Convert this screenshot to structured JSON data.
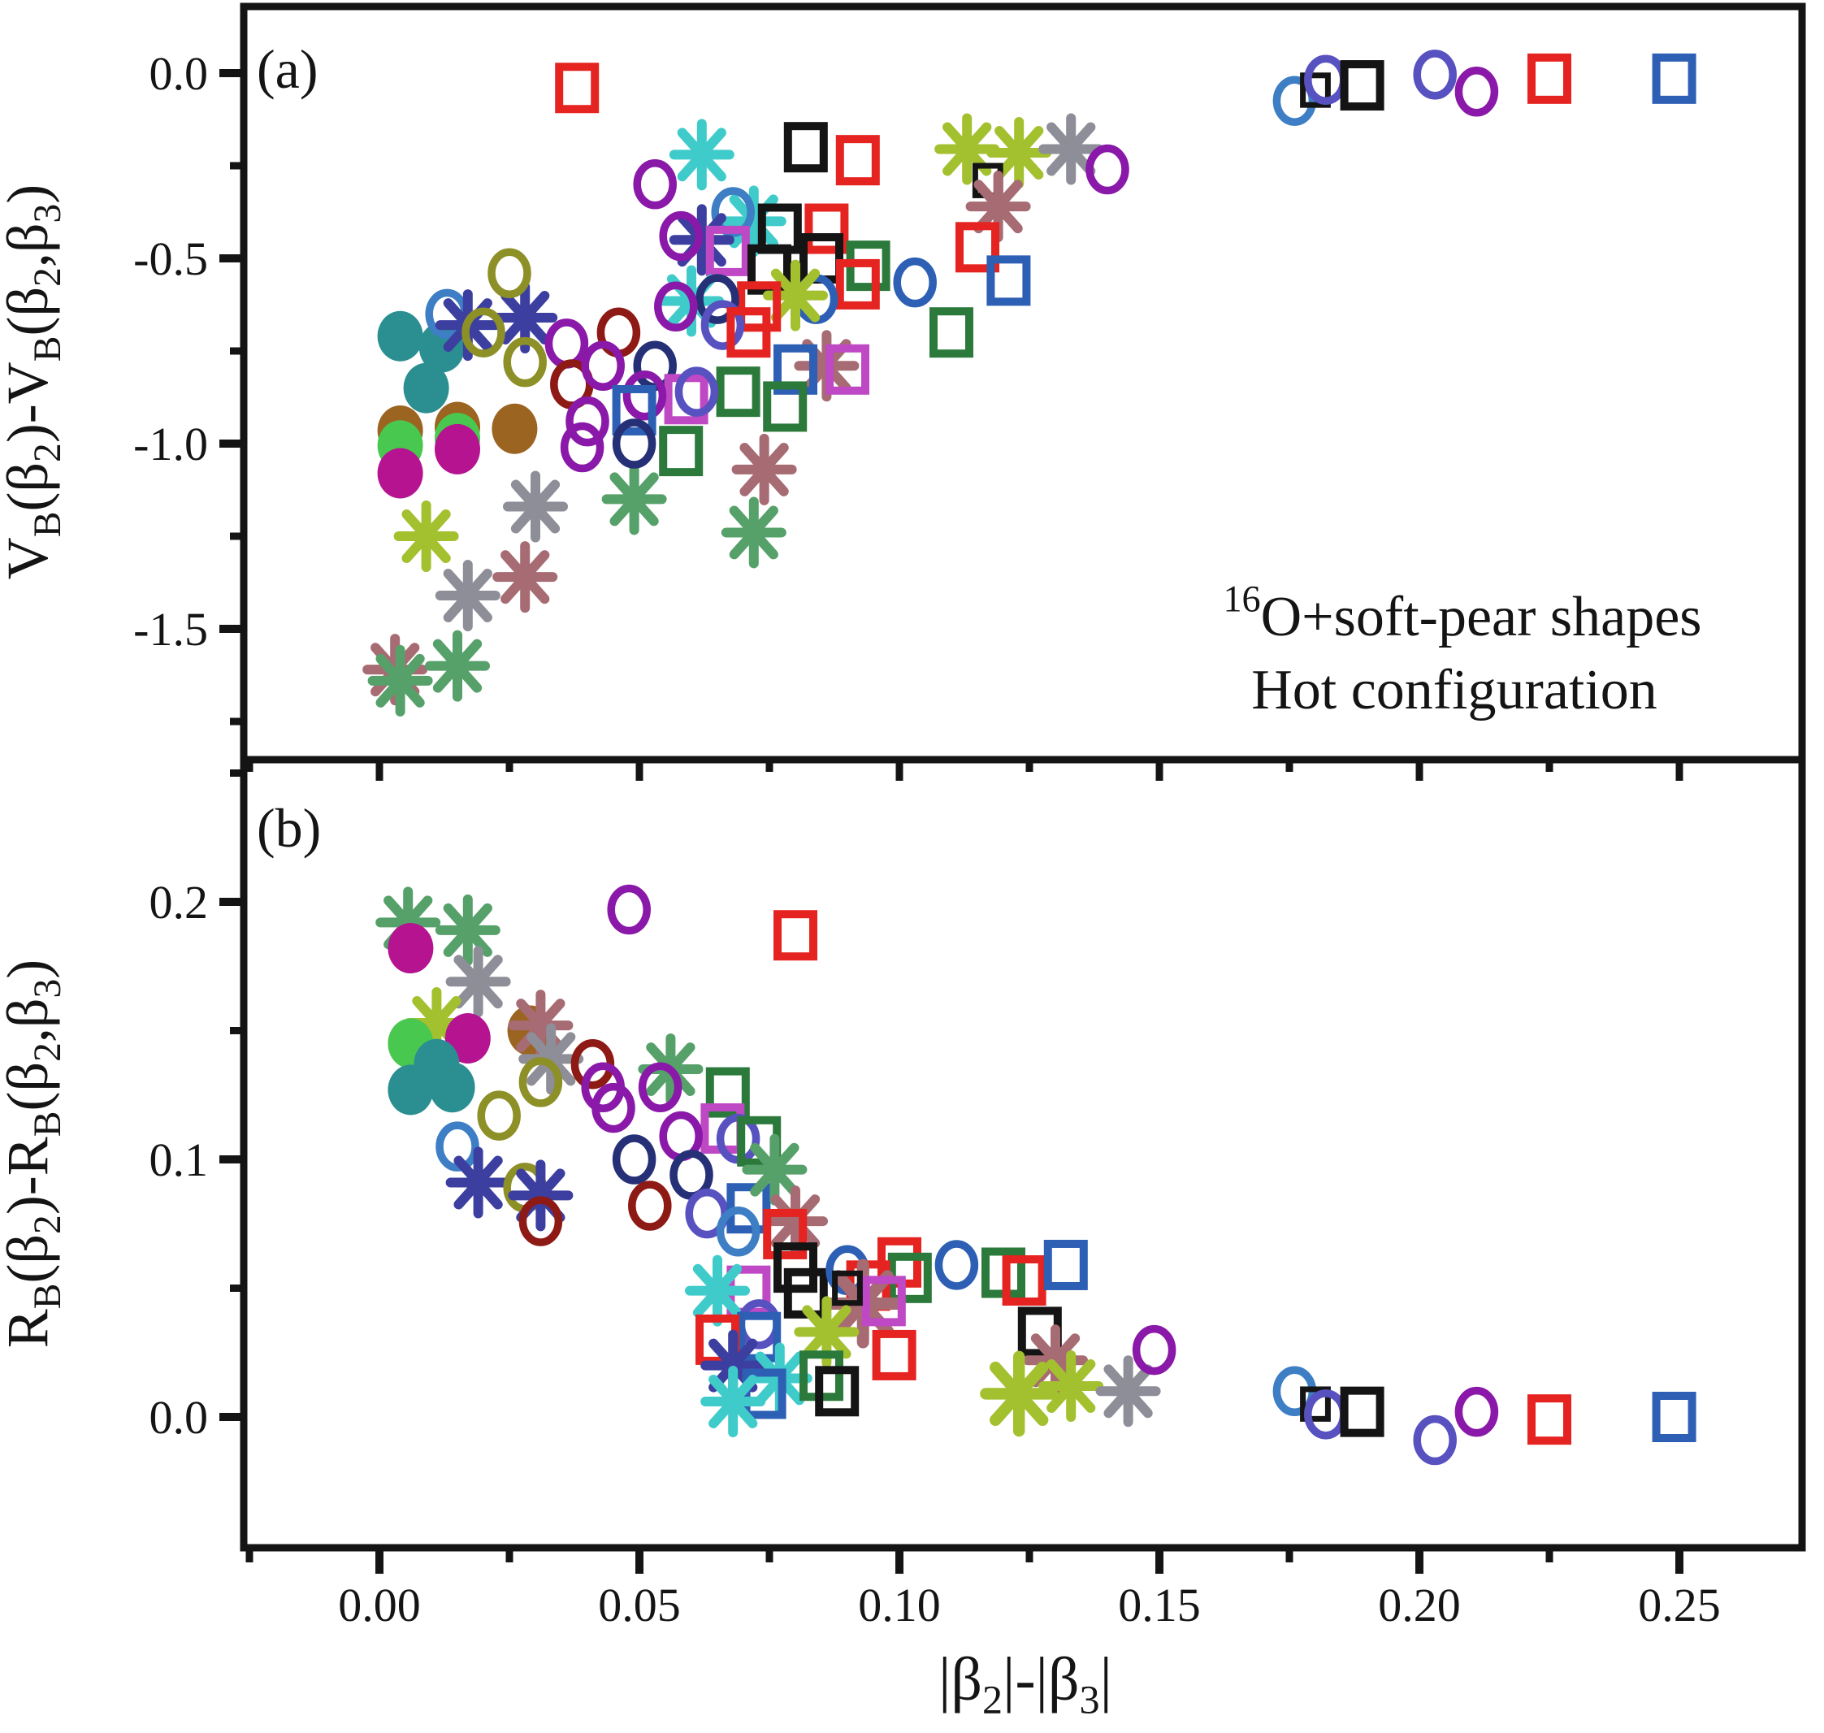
{
  "chart_data": {
    "type": "scatter",
    "title": "",
    "panels": [
      {
        "id": "a",
        "letter": "(a)",
        "ylabel": "V_{B}(β_{2})-V_{B}(β_{2},β_{3})",
        "xlabel": "",
        "ylim": [
          -1.85,
          0.18
        ],
        "yticks": [
          {
            "v": 0.0,
            "label": "0.0"
          },
          {
            "v": -0.5,
            "label": "-0.5"
          },
          {
            "v": -1.0,
            "label": "-1.0"
          },
          {
            "v": -1.5,
            "label": "-1.5"
          }
        ],
        "yminor": [
          -0.25,
          -0.75,
          -1.25,
          -1.75
        ],
        "grid": false,
        "annotation_lines": [
          "^{16}O+soft-pear shapes",
          "Hot configuration"
        ],
        "points": [
          [
            0.004,
            -0.71,
            "fc",
            "teal"
          ],
          [
            0.012,
            -0.74,
            "fc",
            "teal"
          ],
          [
            0.009,
            -0.85,
            "fc",
            "teal"
          ],
          [
            0.013,
            -0.65,
            "oc",
            "steelblue"
          ],
          [
            0.017,
            -0.68,
            "st",
            "navy"
          ],
          [
            0.028,
            -0.66,
            "st",
            "navy"
          ],
          [
            0.02,
            -0.7,
            "oc",
            "olive"
          ],
          [
            0.025,
            -0.54,
            "oc",
            "olive"
          ],
          [
            0.028,
            -0.78,
            "oc",
            "olive"
          ],
          [
            0.036,
            -0.73,
            "oc",
            "purple"
          ],
          [
            0.037,
            -0.84,
            "oc",
            "darkred"
          ],
          [
            0.004,
            -0.965,
            "fc",
            "brown"
          ],
          [
            0.004,
            -1.005,
            "fc",
            "green"
          ],
          [
            0.004,
            -1.08,
            "fc",
            "magenta"
          ],
          [
            0.015,
            -0.955,
            "fc",
            "brown"
          ],
          [
            0.015,
            -0.985,
            "fc",
            "green"
          ],
          [
            0.015,
            -1.015,
            "fc",
            "magenta"
          ],
          [
            0.026,
            -0.96,
            "fc",
            "brown"
          ],
          [
            0.03,
            -1.17,
            "st",
            "gray"
          ],
          [
            0.009,
            -1.25,
            "st",
            "yellowgreen"
          ],
          [
            0.017,
            -1.41,
            "st",
            "gray"
          ],
          [
            0.028,
            -1.36,
            "st",
            "rose"
          ],
          [
            0.003,
            -1.61,
            "st",
            "rose"
          ],
          [
            0.004,
            -1.64,
            "st",
            "seagreen"
          ],
          [
            0.015,
            -1.6,
            "st",
            "seagreen"
          ],
          [
            0.049,
            -1.15,
            "st",
            "seagreen"
          ],
          [
            0.072,
            -1.24,
            "st",
            "seagreen"
          ],
          [
            0.074,
            -1.07,
            "st",
            "rose"
          ],
          [
            0.038,
            -0.04,
            "sq",
            "red"
          ],
          [
            0.062,
            -0.22,
            "st",
            "cyan"
          ],
          [
            0.082,
            -0.2,
            "sq",
            "black"
          ],
          [
            0.092,
            -0.235,
            "sq",
            "red"
          ],
          [
            0.113,
            -0.205,
            "st",
            "yellowgreen"
          ],
          [
            0.123,
            -0.215,
            "st",
            "yellowgreen"
          ],
          [
            0.133,
            -0.205,
            "st",
            "gray"
          ],
          [
            0.117,
            -0.29,
            "sq",
            "black",
            0.7
          ],
          [
            0.119,
            -0.36,
            "st",
            "rose"
          ],
          [
            0.14,
            -0.26,
            "oc",
            "purple"
          ],
          [
            0.053,
            -0.3,
            "oc",
            "purple"
          ],
          [
            0.072,
            -0.4,
            "st",
            "cyan"
          ],
          [
            0.068,
            -0.375,
            "oc",
            "steelblue"
          ],
          [
            0.062,
            -0.45,
            "st",
            "navy"
          ],
          [
            0.058,
            -0.44,
            "oc",
            "purple"
          ],
          [
            0.067,
            -0.48,
            "sq",
            "orchid"
          ],
          [
            0.077,
            -0.42,
            "sq",
            "black"
          ],
          [
            0.086,
            -0.42,
            "sq",
            "red"
          ],
          [
            0.085,
            -0.5,
            "sq",
            "black"
          ],
          [
            0.075,
            -0.53,
            "sq",
            "black"
          ],
          [
            0.094,
            -0.52,
            "sq",
            "darkgreen"
          ],
          [
            0.092,
            -0.57,
            "sq",
            "red"
          ],
          [
            0.115,
            -0.47,
            "sq",
            "red"
          ],
          [
            0.121,
            -0.56,
            "sq",
            "blue"
          ],
          [
            0.103,
            -0.565,
            "oc",
            "blue"
          ],
          [
            0.084,
            -0.61,
            "oc",
            "blue"
          ],
          [
            0.08,
            -0.6,
            "st",
            "yellowgreen"
          ],
          [
            0.073,
            -0.63,
            "sq",
            "red"
          ],
          [
            0.06,
            -0.615,
            "st",
            "cyan"
          ],
          [
            0.065,
            -0.61,
            "oc",
            "navyblue"
          ],
          [
            0.057,
            -0.63,
            "oc",
            "purple"
          ],
          [
            0.066,
            -0.68,
            "oc",
            "violet"
          ],
          [
            0.046,
            -0.7,
            "oc",
            "darkred"
          ],
          [
            0.071,
            -0.7,
            "sq",
            "red"
          ],
          [
            0.043,
            -0.79,
            "oc",
            "purple"
          ],
          [
            0.053,
            -0.79,
            "oc",
            "navyblue"
          ],
          [
            0.11,
            -0.7,
            "sq",
            "darkgreen"
          ],
          [
            0.086,
            -0.79,
            "st",
            "rose"
          ],
          [
            0.09,
            -0.8,
            "sq",
            "orchid"
          ],
          [
            0.08,
            -0.8,
            "sq",
            "blue"
          ],
          [
            0.059,
            -0.88,
            "sq",
            "orchid"
          ],
          [
            0.051,
            -0.87,
            "oc",
            "purple"
          ],
          [
            0.049,
            -0.91,
            "sq",
            "blue"
          ],
          [
            0.069,
            -0.86,
            "sq",
            "darkgreen"
          ],
          [
            0.078,
            -0.9,
            "sq",
            "darkgreen"
          ],
          [
            0.061,
            -0.86,
            "oc",
            "violet"
          ],
          [
            0.04,
            -0.94,
            "oc",
            "purple"
          ],
          [
            0.039,
            -1.01,
            "oc",
            "purple"
          ],
          [
            0.049,
            -1.0,
            "oc",
            "navyblue"
          ],
          [
            0.058,
            -1.02,
            "sq",
            "darkgreen"
          ],
          [
            0.176,
            -0.075,
            "oc",
            "steelblue"
          ],
          [
            0.18,
            -0.046,
            "sq",
            "black",
            0.7
          ],
          [
            0.182,
            -0.018,
            "oc",
            "violet"
          ],
          [
            0.189,
            -0.033,
            "sq",
            "black"
          ],
          [
            0.203,
            -0.004,
            "oc",
            "violet"
          ],
          [
            0.211,
            -0.05,
            "oc",
            "purple"
          ],
          [
            0.225,
            -0.015,
            "sq",
            "red"
          ],
          [
            0.249,
            -0.015,
            "sq",
            "blue"
          ]
        ]
      },
      {
        "id": "b",
        "letter": "(b)",
        "ylabel": "R_{B}(β_{2})-R_{B}(β_{2},β_{3})",
        "ylim": [
          -0.051,
          0.255
        ],
        "yticks": [
          {
            "v": 0.2,
            "label": "0.2"
          },
          {
            "v": 0.1,
            "label": "0.1"
          },
          {
            "v": 0.0,
            "label": "0.0"
          }
        ],
        "yminor": [
          0.25,
          0.15,
          0.05
        ],
        "grid": false,
        "annotation_lines": [],
        "points": [
          [
            0.0055,
            0.192,
            "st",
            "seagreen"
          ],
          [
            0.006,
            0.182,
            "fc",
            "magenta"
          ],
          [
            0.017,
            0.189,
            "st",
            "seagreen"
          ],
          [
            0.048,
            0.197,
            "oc",
            "purple"
          ],
          [
            0.08,
            0.187,
            "sq",
            "red"
          ],
          [
            0.019,
            0.169,
            "st",
            "gray"
          ],
          [
            0.011,
            0.153,
            "st",
            "yellowgreen"
          ],
          [
            0.006,
            0.145,
            "fc",
            "green"
          ],
          [
            0.017,
            0.147,
            "fc",
            "magenta"
          ],
          [
            0.029,
            0.15,
            "fc",
            "brown"
          ],
          [
            0.031,
            0.152,
            "st",
            "rose"
          ],
          [
            0.011,
            0.137,
            "fc",
            "teal"
          ],
          [
            0.014,
            0.128,
            "fc",
            "teal"
          ],
          [
            0.006,
            0.127,
            "fc",
            "teal"
          ],
          [
            0.033,
            0.139,
            "st",
            "gray"
          ],
          [
            0.041,
            0.137,
            "oc",
            "darkred"
          ],
          [
            0.031,
            0.13,
            "oc",
            "olive"
          ],
          [
            0.043,
            0.128,
            "oc",
            "purple"
          ],
          [
            0.045,
            0.12,
            "oc",
            "purple"
          ],
          [
            0.056,
            0.135,
            "st",
            "seagreen"
          ],
          [
            0.054,
            0.128,
            "oc",
            "purple"
          ],
          [
            0.067,
            0.126,
            "sq",
            "darkgreen"
          ],
          [
            0.023,
            0.117,
            "oc",
            "olive"
          ],
          [
            0.066,
            0.112,
            "sq",
            "orchid"
          ],
          [
            0.058,
            0.109,
            "oc",
            "purple"
          ],
          [
            0.069,
            0.108,
            "oc",
            "violet"
          ],
          [
            0.073,
            0.107,
            "sq",
            "darkgreen"
          ],
          [
            0.015,
            0.105,
            "oc",
            "steelblue"
          ],
          [
            0.049,
            0.1,
            "oc",
            "navyblue"
          ],
          [
            0.06,
            0.094,
            "oc",
            "navyblue"
          ],
          [
            0.019,
            0.091,
            "st",
            "navy"
          ],
          [
            0.028,
            0.089,
            "oc",
            "olive"
          ],
          [
            0.031,
            0.086,
            "st",
            "navy"
          ],
          [
            0.031,
            0.076,
            "oc",
            "darkred"
          ],
          [
            0.052,
            0.082,
            "oc",
            "darkred"
          ],
          [
            0.063,
            0.079,
            "oc",
            "violet"
          ],
          [
            0.071,
            0.081,
            "sq",
            "blue"
          ],
          [
            0.069,
            0.072,
            "oc",
            "steelblue"
          ],
          [
            0.076,
            0.096,
            "st",
            "seagreen"
          ],
          [
            0.08,
            0.076,
            "st",
            "rose"
          ],
          [
            0.078,
            0.071,
            "sq",
            "red"
          ],
          [
            0.08,
            0.058,
            "sq",
            "black"
          ],
          [
            0.082,
            0.048,
            "sq",
            "black"
          ],
          [
            0.071,
            0.049,
            "sq",
            "orchid"
          ],
          [
            0.065,
            0.049,
            "st",
            "cyan"
          ],
          [
            0.09,
            0.057,
            "oc",
            "blue"
          ],
          [
            0.1,
            0.06,
            "sq",
            "red"
          ],
          [
            0.102,
            0.054,
            "sq",
            "darkgreen"
          ],
          [
            0.094,
            0.051,
            "sq",
            "red"
          ],
          [
            0.093,
            0.044,
            "st",
            "rose",
            1.25
          ],
          [
            0.097,
            0.045,
            "sq",
            "orchid"
          ],
          [
            0.09,
            0.05,
            "sq",
            "black",
            0.7
          ],
          [
            0.073,
            0.036,
            "oc",
            "violet"
          ],
          [
            0.073,
            0.031,
            "sq",
            "blue"
          ],
          [
            0.065,
            0.03,
            "sq",
            "red"
          ],
          [
            0.068,
            0.02,
            "st",
            "navy"
          ],
          [
            0.086,
            0.033,
            "st",
            "yellowgreen"
          ],
          [
            0.099,
            0.024,
            "sq",
            "red"
          ],
          [
            0.077,
            0.015,
            "st",
            "cyan"
          ],
          [
            0.085,
            0.016,
            "sq",
            "darkgreen"
          ],
          [
            0.074,
            0.009,
            "sq",
            "blue"
          ],
          [
            0.068,
            0.006,
            "st",
            "cyan"
          ],
          [
            0.088,
            0.01,
            "sq",
            "black"
          ],
          [
            0.111,
            0.059,
            "oc",
            "blue"
          ],
          [
            0.12,
            0.056,
            "sq",
            "darkgreen"
          ],
          [
            0.124,
            0.053,
            "sq",
            "red"
          ],
          [
            0.132,
            0.059,
            "sq",
            "blue"
          ],
          [
            0.127,
            0.033,
            "sq",
            "black"
          ],
          [
            0.13,
            0.022,
            "st",
            "rose"
          ],
          [
            0.123,
            0.009,
            "st",
            "yellowgreen",
            1.2
          ],
          [
            0.133,
            0.012,
            "st",
            "yellowgreen"
          ],
          [
            0.144,
            0.01,
            "st",
            "gray"
          ],
          [
            0.149,
            0.026,
            "oc",
            "purple"
          ],
          [
            0.176,
            0.01,
            "oc",
            "steelblue"
          ],
          [
            0.18,
            0.005,
            "sq",
            "black",
            0.7
          ],
          [
            0.182,
            0.001,
            "oc",
            "violet"
          ],
          [
            0.189,
            0.002,
            "sq",
            "black"
          ],
          [
            0.203,
            -0.009,
            "oc",
            "violet"
          ],
          [
            0.211,
            0.002,
            "oc",
            "purple"
          ],
          [
            0.225,
            -0.001,
            "sq",
            "red"
          ],
          [
            0.249,
            0.0,
            "sq",
            "blue"
          ]
        ]
      }
    ],
    "xaxis": {
      "label": "|β_{2}|-|β_{3}|",
      "xlim": [
        -0.026,
        0.274
      ],
      "ticks": [
        {
          "v": 0.0,
          "label": "0.00"
        },
        {
          "v": 0.05,
          "label": "0.05"
        },
        {
          "v": 0.1,
          "label": "0.10"
        },
        {
          "v": 0.15,
          "label": "0.15"
        },
        {
          "v": 0.2,
          "label": "0.20"
        },
        {
          "v": 0.25,
          "label": "0.25"
        }
      ],
      "minor": [
        -0.025,
        0.025,
        0.075,
        0.125,
        0.175,
        0.225
      ]
    },
    "legend_position": "none",
    "marker_types": {
      "fc": "filled-circle",
      "oc": "open-circle",
      "sq": "open-square",
      "st": "asterisk"
    },
    "colors": {
      "red": "#e52320",
      "blue": "#2d5fb5",
      "steelblue": "#3d7ec4",
      "navy": "#3c3fa0",
      "navyblue": "#263077",
      "violet": "#5851c0",
      "black": "#141414",
      "darkred": "#8e1a15",
      "olive": "#8d8f27",
      "teal": "#2b8f92",
      "seagreen": "#56a06a",
      "darkgreen": "#2b7a3b",
      "green": "#49c84f",
      "magenta": "#b5138f",
      "brown": "#9b6421",
      "yellowgreen": "#a3c02f",
      "gray": "#8e8e98",
      "rose": "#a76b73",
      "purple": "#8a18a8",
      "orchid": "#bf48c4",
      "cyan": "#40cbcb",
      "axis": "#141414"
    }
  }
}
